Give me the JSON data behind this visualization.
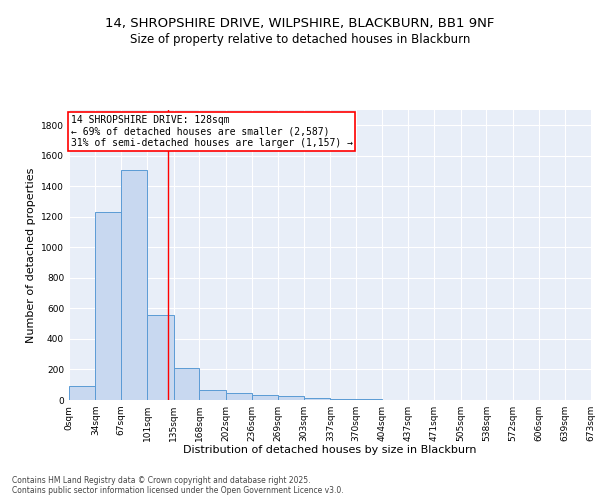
{
  "title": "14, SHROPSHIRE DRIVE, WILPSHIRE, BLACKBURN, BB1 9NF",
  "subtitle": "Size of property relative to detached houses in Blackburn",
  "xlabel": "Distribution of detached houses by size in Blackburn",
  "ylabel": "Number of detached properties",
  "bar_color": "#c8d8f0",
  "bar_edge_color": "#5b9bd5",
  "background_color": "#e8eef8",
  "grid_color": "#ffffff",
  "annotation_line_color": "red",
  "annotation_text": "14 SHROPSHIRE DRIVE: 128sqm\n← 69% of detached houses are smaller (2,587)\n31% of semi-detached houses are larger (1,157) →",
  "property_size": 128,
  "bin_edges": [
    0,
    34,
    67,
    101,
    135,
    168,
    202,
    236,
    269,
    303,
    337,
    370,
    404,
    437,
    471,
    505,
    538,
    572,
    606,
    639,
    673
  ],
  "bar_heights": [
    90,
    1230,
    1510,
    560,
    210,
    65,
    47,
    35,
    28,
    10,
    8,
    5,
    3,
    2,
    1,
    1,
    0,
    0,
    0,
    0
  ],
  "ylim": [
    0,
    1900
  ],
  "yticks": [
    0,
    200,
    400,
    600,
    800,
    1000,
    1200,
    1400,
    1600,
    1800
  ],
  "footnote": "Contains HM Land Registry data © Crown copyright and database right 2025.\nContains public sector information licensed under the Open Government Licence v3.0.",
  "title_fontsize": 9.5,
  "subtitle_fontsize": 8.5,
  "tick_fontsize": 6.5,
  "label_fontsize": 8,
  "annotation_fontsize": 7,
  "footnote_fontsize": 5.5
}
